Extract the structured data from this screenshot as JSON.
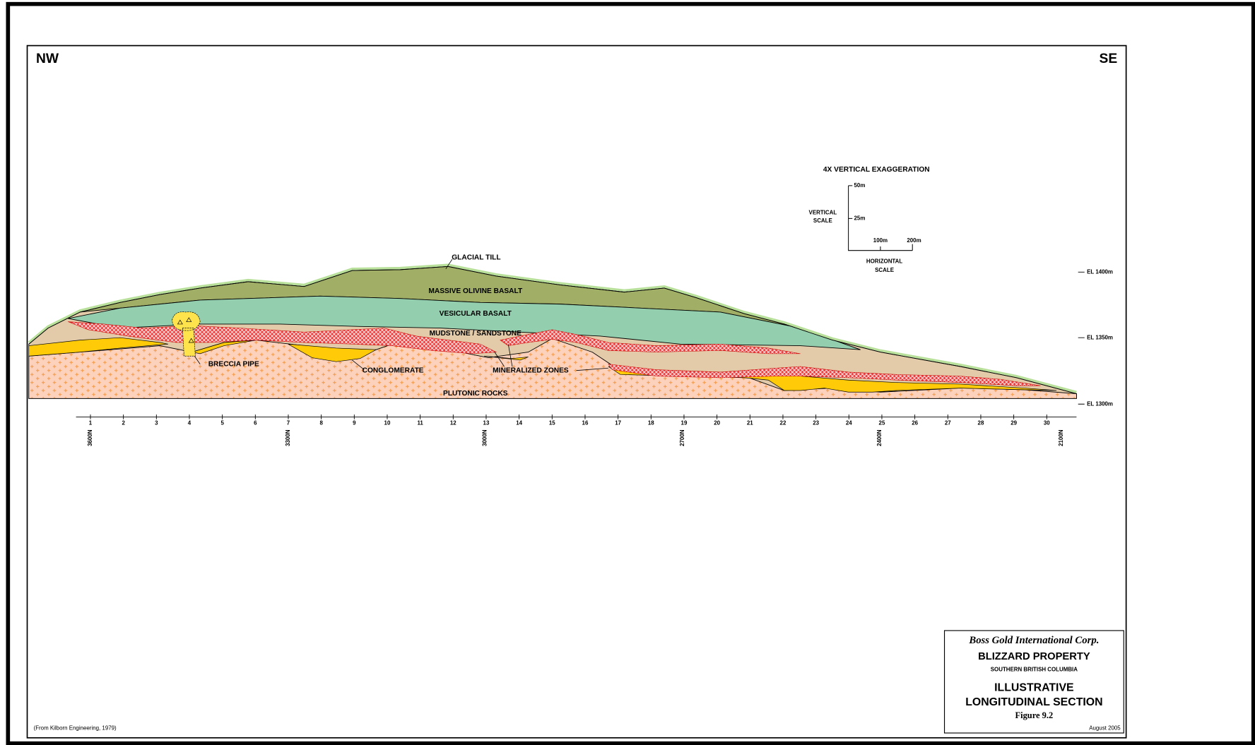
{
  "header": {
    "left": "NW",
    "right": "SE"
  },
  "scale": {
    "title": "4X VERTICAL EXAGGERATION",
    "vertical_label": [
      "VERTICAL",
      "SCALE"
    ],
    "vertical_ticks": [
      "50m",
      "25m"
    ],
    "horizontal_ticks": [
      "100m",
      "200m"
    ],
    "horizontal_label": [
      "HORIZONTAL",
      "SCALE"
    ]
  },
  "elevations": [
    "EL 1400m",
    "EL 1350m",
    "EL 1300m"
  ],
  "units": {
    "glacial_till": "GLACIAL TILL",
    "massive_basalt": "MASSIVE OLIVINE BASALT",
    "vesicular_basalt": "VESICULAR BASALT",
    "mudstone": "MUDSTONE / SANDSTONE",
    "breccia": "BRECCIA PIPE",
    "conglomerate": "CONGLOMERATE",
    "mineralized": "MINERALIZED ZONES",
    "plutonic": "PLUTONIC ROCKS"
  },
  "stations": [
    1,
    2,
    3,
    4,
    5,
    6,
    7,
    8,
    9,
    10,
    11,
    12,
    13,
    14,
    15,
    16,
    17,
    18,
    19,
    20,
    21,
    22,
    23,
    24,
    25,
    26,
    27,
    28,
    29,
    30
  ],
  "northings": [
    "3600N",
    "3300N",
    "3000N",
    "2700N",
    "2400N",
    "2100N"
  ],
  "title_block": {
    "company": "Boss Gold International Corp.",
    "property": "BLIZZARD PROPERTY",
    "region": "SOUTHERN BRITISH COLUMBIA",
    "title_lines": [
      "ILLUSTRATIVE",
      "LONGITUDINAL SECTION"
    ],
    "figure": "Figure 9.2",
    "date": "August 2005"
  },
  "source": "(From Kilborn Engineering, 1979)"
}
